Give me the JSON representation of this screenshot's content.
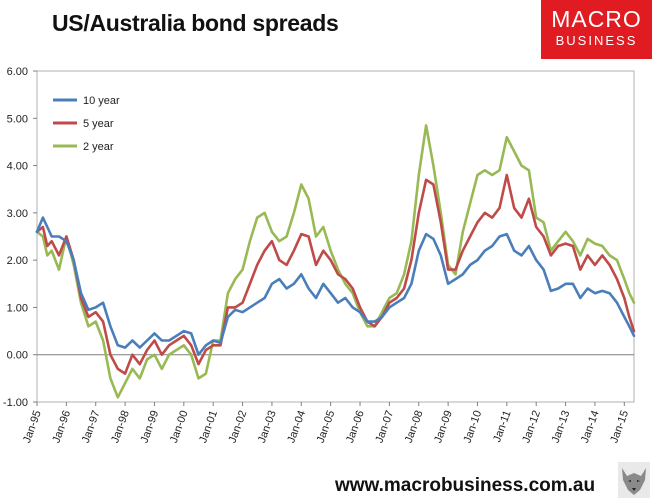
{
  "title": "US/Australia bond spreads",
  "logo": {
    "line1": "MACRO",
    "line2": "BUSINESS"
  },
  "footer": "www.macrobusiness.com.au",
  "colors": {
    "s10": "#4a7ebb",
    "s5": "#be4b48",
    "s2": "#98b954",
    "axis": "#7f7f7f",
    "border": "#b0b0b0"
  },
  "chart_data": {
    "type": "line",
    "title": "US/Australia bond spreads",
    "ylim": [
      -1,
      6
    ],
    "yticks": [
      -1,
      0,
      1,
      2,
      3,
      4,
      5,
      6
    ],
    "ytick_labels": [
      "-1.00",
      "0.00",
      "1.00",
      "2.00",
      "3.00",
      "4.00",
      "5.00",
      "6.00"
    ],
    "xlim": [
      1995.0,
      2015.33
    ],
    "xticks": [
      1995,
      1996,
      1997,
      1998,
      1999,
      2000,
      2001,
      2002,
      2003,
      2004,
      2005,
      2006,
      2007,
      2008,
      2009,
      2010,
      2011,
      2012,
      2013,
      2014,
      2015
    ],
    "xtick_labels": [
      "Jan-95",
      "Jan-96",
      "Jan-97",
      "Jan-98",
      "Jan-99",
      "Jan-00",
      "Jan-01",
      "Jan-02",
      "Jan-03",
      "Jan-04",
      "Jan-05",
      "Jan-06",
      "Jan-07",
      "Jan-08",
      "Jan-09",
      "Jan-10",
      "Jan-11",
      "Jan-12",
      "Jan-13",
      "Jan-14",
      "Jan-15"
    ],
    "legend_position": "top-left",
    "grid": false,
    "series": [
      {
        "name": "10 year",
        "color": "#4a7ebb",
        "x": [
          1995.0,
          1995.2,
          1995.35,
          1995.5,
          1995.75,
          1996.0,
          1996.25,
          1996.5,
          1996.75,
          1997.0,
          1997.25,
          1997.5,
          1997.75,
          1998.0,
          1998.25,
          1998.5,
          1998.75,
          1999.0,
          1999.25,
          1999.5,
          1999.75,
          2000.0,
          2000.25,
          2000.5,
          2000.75,
          2001.0,
          2001.25,
          2001.5,
          2001.75,
          2002.0,
          2002.25,
          2002.5,
          2002.75,
          2003.0,
          2003.25,
          2003.5,
          2003.75,
          2004.0,
          2004.25,
          2004.5,
          2004.75,
          2005.0,
          2005.25,
          2005.5,
          2005.75,
          2006.0,
          2006.25,
          2006.5,
          2006.75,
          2007.0,
          2007.25,
          2007.5,
          2007.75,
          2008.0,
          2008.25,
          2008.5,
          2008.75,
          2009.0,
          2009.25,
          2009.5,
          2009.75,
          2010.0,
          2010.25,
          2010.5,
          2010.75,
          2011.0,
          2011.25,
          2011.5,
          2011.75,
          2012.0,
          2012.25,
          2012.5,
          2012.75,
          2013.0,
          2013.25,
          2013.5,
          2013.75,
          2014.0,
          2014.25,
          2014.5,
          2014.75,
          2015.0,
          2015.17,
          2015.33
        ],
        "values": [
          2.6,
          2.9,
          2.7,
          2.5,
          2.5,
          2.4,
          2.0,
          1.3,
          0.95,
          1.0,
          1.1,
          0.6,
          0.2,
          0.15,
          0.3,
          0.15,
          0.3,
          0.45,
          0.3,
          0.3,
          0.4,
          0.5,
          0.45,
          0.0,
          0.2,
          0.3,
          0.25,
          0.8,
          0.95,
          0.9,
          1.0,
          1.1,
          1.2,
          1.5,
          1.6,
          1.4,
          1.5,
          1.7,
          1.4,
          1.2,
          1.5,
          1.3,
          1.1,
          1.2,
          1.0,
          0.9,
          0.7,
          0.7,
          0.8,
          1.0,
          1.1,
          1.2,
          1.5,
          2.2,
          2.55,
          2.45,
          2.1,
          1.5,
          1.6,
          1.7,
          1.9,
          2.0,
          2.2,
          2.3,
          2.5,
          2.55,
          2.2,
          2.1,
          2.3,
          2.0,
          1.8,
          1.35,
          1.4,
          1.5,
          1.5,
          1.2,
          1.4,
          1.3,
          1.35,
          1.3,
          1.1,
          0.8,
          0.6,
          0.4
        ]
      },
      {
        "name": "5 year",
        "color": "#be4b48",
        "x": [
          1995.0,
          1995.2,
          1995.35,
          1995.5,
          1995.75,
          1996.0,
          1996.25,
          1996.5,
          1996.75,
          1997.0,
          1997.25,
          1997.5,
          1997.75,
          1998.0,
          1998.25,
          1998.5,
          1998.75,
          1999.0,
          1999.25,
          1999.5,
          1999.75,
          2000.0,
          2000.25,
          2000.5,
          2000.75,
          2001.0,
          2001.25,
          2001.5,
          2001.75,
          2002.0,
          2002.25,
          2002.5,
          2002.75,
          2003.0,
          2003.25,
          2003.5,
          2003.75,
          2004.0,
          2004.25,
          2004.5,
          2004.75,
          2005.0,
          2005.25,
          2005.5,
          2005.75,
          2006.0,
          2006.25,
          2006.5,
          2006.75,
          2007.0,
          2007.25,
          2007.5,
          2007.75,
          2008.0,
          2008.25,
          2008.5,
          2008.75,
          2009.0,
          2009.25,
          2009.5,
          2009.75,
          2010.0,
          2010.25,
          2010.5,
          2010.75,
          2011.0,
          2011.25,
          2011.5,
          2011.75,
          2012.0,
          2012.25,
          2012.5,
          2012.75,
          2013.0,
          2013.25,
          2013.5,
          2013.75,
          2014.0,
          2014.25,
          2014.5,
          2014.75,
          2015.0,
          2015.17,
          2015.33
        ],
        "values": [
          2.6,
          2.7,
          2.3,
          2.4,
          2.1,
          2.5,
          2.0,
          1.2,
          0.8,
          0.9,
          0.7,
          0.0,
          -0.3,
          -0.4,
          0.0,
          -0.2,
          0.1,
          0.3,
          0.0,
          0.2,
          0.3,
          0.4,
          0.2,
          -0.2,
          0.1,
          0.2,
          0.2,
          1.0,
          1.0,
          1.1,
          1.5,
          1.9,
          2.2,
          2.4,
          2.0,
          1.9,
          2.2,
          2.55,
          2.5,
          1.9,
          2.2,
          2.0,
          1.7,
          1.6,
          1.4,
          1.0,
          0.7,
          0.6,
          0.8,
          1.1,
          1.2,
          1.4,
          2.0,
          3.0,
          3.7,
          3.6,
          2.8,
          1.8,
          1.8,
          2.2,
          2.5,
          2.8,
          3.0,
          2.9,
          3.1,
          3.8,
          3.1,
          2.9,
          3.3,
          2.7,
          2.5,
          2.1,
          2.3,
          2.35,
          2.3,
          1.8,
          2.1,
          1.9,
          2.1,
          1.9,
          1.6,
          1.2,
          0.8,
          0.5
        ]
      },
      {
        "name": "2 year",
        "color": "#98b954",
        "x": [
          1995.0,
          1995.2,
          1995.35,
          1995.5,
          1995.75,
          1996.0,
          1996.25,
          1996.5,
          1996.75,
          1997.0,
          1997.25,
          1997.5,
          1997.75,
          1998.0,
          1998.25,
          1998.5,
          1998.75,
          1999.0,
          1999.25,
          1999.5,
          1999.75,
          2000.0,
          2000.25,
          2000.5,
          2000.75,
          2001.0,
          2001.25,
          2001.5,
          2001.75,
          2002.0,
          2002.25,
          2002.5,
          2002.75,
          2003.0,
          2003.25,
          2003.5,
          2003.75,
          2004.0,
          2004.25,
          2004.5,
          2004.75,
          2005.0,
          2005.25,
          2005.5,
          2005.75,
          2006.0,
          2006.25,
          2006.5,
          2006.75,
          2007.0,
          2007.25,
          2007.5,
          2007.75,
          2008.0,
          2008.25,
          2008.5,
          2008.75,
          2009.0,
          2009.25,
          2009.5,
          2009.75,
          2010.0,
          2010.25,
          2010.5,
          2010.75,
          2011.0,
          2011.25,
          2011.5,
          2011.75,
          2012.0,
          2012.25,
          2012.5,
          2012.75,
          2013.0,
          2013.25,
          2013.5,
          2013.75,
          2014.0,
          2014.25,
          2014.5,
          2014.75,
          2015.0,
          2015.17,
          2015.33
        ],
        "values": [
          2.6,
          2.5,
          2.1,
          2.2,
          1.8,
          2.5,
          1.9,
          1.1,
          0.6,
          0.7,
          0.3,
          -0.5,
          -0.9,
          -0.6,
          -0.3,
          -0.5,
          -0.1,
          0.0,
          -0.3,
          0.0,
          0.1,
          0.2,
          0.0,
          -0.5,
          -0.4,
          0.3,
          0.3,
          1.3,
          1.6,
          1.8,
          2.4,
          2.9,
          3.0,
          2.6,
          2.4,
          2.5,
          3.0,
          3.6,
          3.3,
          2.5,
          2.7,
          2.2,
          1.8,
          1.5,
          1.3,
          0.9,
          0.6,
          0.6,
          0.9,
          1.2,
          1.3,
          1.7,
          2.4,
          3.8,
          4.85,
          4.0,
          3.0,
          1.9,
          1.7,
          2.6,
          3.2,
          3.8,
          3.9,
          3.8,
          3.9,
          4.6,
          4.3,
          4.0,
          3.9,
          2.9,
          2.8,
          2.2,
          2.4,
          2.6,
          2.4,
          2.1,
          2.45,
          2.35,
          2.3,
          2.1,
          2.0,
          1.6,
          1.3,
          1.1
        ]
      }
    ]
  }
}
